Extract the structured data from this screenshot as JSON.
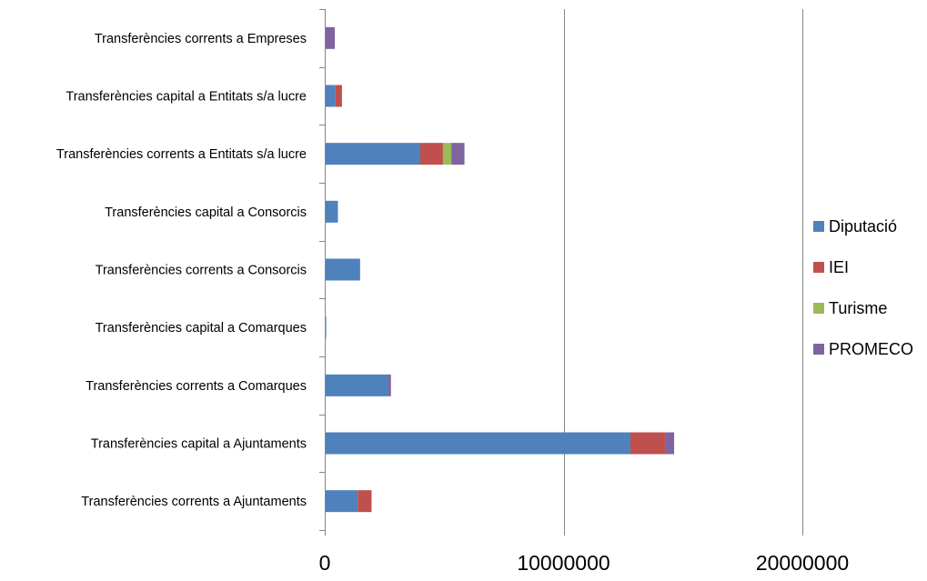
{
  "chart_data": {
    "type": "bar",
    "orientation": "horizontal",
    "stacked": true,
    "categories": [
      "Transferències corrents a Empreses",
      "Transferències capital a Entitats s/a lucre",
      "Transferències corrents a Entitats s/a lucre",
      "Transferències capital a Consorcis",
      "Transferències corrents a Consorcis",
      "Transferències capital a Comarques",
      "Transferències corrents a Comarques",
      "Transferències capital a Ajuntaments",
      "Transferències corrents a Ajuntaments"
    ],
    "series": [
      {
        "name": "Diputació",
        "color": "#4F81BD",
        "values": [
          0,
          450000,
          4000000,
          550000,
          1480000,
          60000,
          2650000,
          12800000,
          1380000
        ]
      },
      {
        "name": "IEI",
        "color": "#C0504D",
        "values": [
          0,
          270000,
          950000,
          0,
          0,
          0,
          0,
          1450000,
          580000
        ]
      },
      {
        "name": "Turisme",
        "color": "#9BBB59",
        "values": [
          0,
          0,
          350000,
          0,
          0,
          0,
          0,
          0,
          0
        ]
      },
      {
        "name": "PROMECO",
        "color": "#8064A2",
        "values": [
          420000,
          0,
          550000,
          0,
          0,
          0,
          120000,
          380000,
          0
        ]
      }
    ],
    "x_ticks": [
      "0",
      "10000000",
      "20000000"
    ],
    "xlim": [
      0,
      20000000
    ],
    "grid": "vertical major gridlines",
    "legend_position": "right"
  }
}
